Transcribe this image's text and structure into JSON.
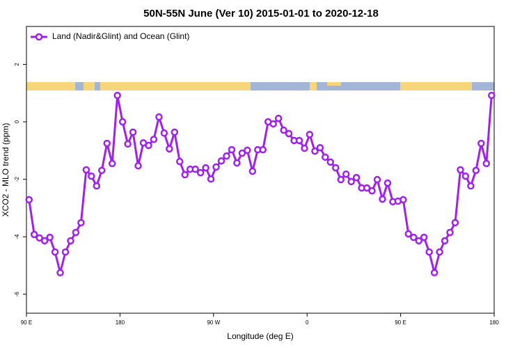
{
  "chart_data": {
    "type": "line",
    "title": "50N-55N June (Ver 10)   2015-01-01 to 2020-12-18",
    "x_label": "Longitude (deg E)",
    "y_label": "XCO2 - MLO trend (ppm)",
    "x": [
      92.5,
      97.5,
      102.5,
      107.5,
      112.5,
      117.5,
      122.5,
      127.5,
      132.5,
      137.5,
      142.5,
      147.5,
      152.5,
      157.5,
      162.5,
      167.5,
      172.5,
      177.5,
      182.5,
      187.5,
      192.5,
      197.5,
      202.5,
      207.5,
      212.5,
      217.5,
      222.5,
      227.5,
      232.5,
      237.5,
      242.5,
      247.5,
      252.5,
      257.5,
      262.5,
      267.5,
      272.5,
      277.5,
      282.5,
      287.5,
      292.5,
      297.5,
      302.5,
      307.5,
      312.5,
      317.5,
      322.5,
      327.5,
      332.5,
      337.5,
      342.5,
      347.5,
      352.5,
      357.5,
      362.5,
      367.5,
      372.5,
      377.5,
      382.5,
      387.5,
      392.5,
      397.5,
      402.5,
      407.5,
      412.5,
      417.5,
      422.5,
      427.5,
      432.5,
      437.5,
      442.5,
      447.5,
      452.5,
      457.5,
      462.5,
      467.5,
      472.5,
      477.5,
      482.5,
      487.5,
      492.5,
      497.5,
      502.5,
      507.5,
      512.5,
      517.5,
      522.5,
      527.5,
      532.5,
      537.5
    ],
    "series": [
      {
        "name": "Land (Nadir&Glint) and Ocean (Glint)",
        "color": "#a020f0",
        "values": [
          -2.71,
          -3.92,
          -4.04,
          -4.14,
          -4.02,
          -4.53,
          -5.25,
          -4.53,
          -4.14,
          -3.85,
          -3.51,
          -1.67,
          -1.89,
          -2.23,
          -1.69,
          -0.75,
          -1.45,
          0.92,
          0.0,
          -0.77,
          -0.36,
          -1.53,
          -0.73,
          -0.82,
          -0.61,
          0.17,
          -0.39,
          -0.94,
          -0.36,
          -1.38,
          -1.84,
          -1.65,
          -1.65,
          -1.77,
          -1.6,
          -1.99,
          -1.57,
          -1.36,
          -1.19,
          -0.97,
          -1.43,
          -1.09,
          -0.99,
          -1.72,
          -0.97,
          -0.97,
          0.0,
          -0.07,
          0.12,
          -0.29,
          -0.41,
          -0.65,
          -0.65,
          -0.92,
          -0.44,
          -1.02,
          -0.9,
          -1.23,
          -1.4,
          -1.6,
          -2.01,
          -1.82,
          -2.08,
          -1.94,
          -2.3,
          -2.3,
          -2.4,
          -2.01,
          -2.69,
          -2.13,
          -2.78,
          -2.76,
          -2.71,
          -3.9,
          -4.02,
          -4.14,
          -4.02,
          -4.53,
          -5.25,
          -4.53,
          -4.14,
          -3.85,
          -3.51,
          -1.67,
          -1.89,
          -2.23,
          -1.69,
          -0.75,
          -1.45,
          0.92
        ]
      }
    ],
    "xlim": [
      90,
      540
    ],
    "xticks": [
      {
        "value": 90,
        "label": "90 E"
      },
      180,
      {
        "value": 270,
        "label": "90 W"
      },
      {
        "value": 360,
        "label": "0"
      },
      {
        "value": 450,
        "label": "90 E"
      },
      {
        "value": 540,
        "label": "180"
      }
    ],
    "ylim": [
      -6.66,
      3.32
    ],
    "yticks": [
      -6,
      -4,
      -2,
      0,
      2
    ],
    "legend": "top-left"
  }
}
